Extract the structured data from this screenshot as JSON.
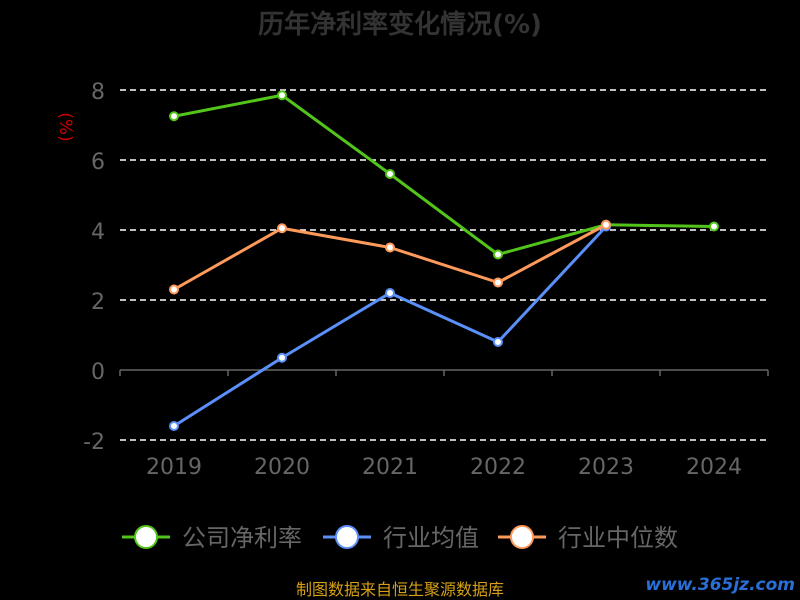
{
  "chart_data": {
    "type": "line",
    "title": "历年净利率变化情况(%)",
    "ylabel": "(%)",
    "xlabel": "",
    "categories": [
      "2019",
      "2020",
      "2021",
      "2022",
      "2023",
      "2024"
    ],
    "ylim": [
      -2,
      8
    ],
    "yticks": [
      -2,
      0,
      2,
      4,
      6,
      8
    ],
    "grid": true,
    "legend_position": "bottom",
    "series": [
      {
        "name": "公司净利率",
        "color": "#52c41a",
        "values": [
          7.25,
          7.85,
          5.6,
          3.3,
          4.15,
          4.1
        ]
      },
      {
        "name": "行业均值",
        "color": "#5b8ff9",
        "values": [
          -1.6,
          0.35,
          2.2,
          0.8,
          4.1,
          null
        ]
      },
      {
        "name": "行业中位数",
        "color": "#ff9a5b",
        "values": [
          2.3,
          4.05,
          3.5,
          2.5,
          4.15,
          null
        ]
      }
    ]
  },
  "footer": {
    "source": "制图数据来自恒生聚源数据库"
  },
  "watermark": {
    "text": "www.365jz.com"
  },
  "colors": {
    "background": "#000000",
    "grid": "#ffffff",
    "axis": "#666666",
    "tick_label": "#666666",
    "title": "#333333",
    "ylabel": "#cc0000",
    "footer": "#d4a017"
  }
}
